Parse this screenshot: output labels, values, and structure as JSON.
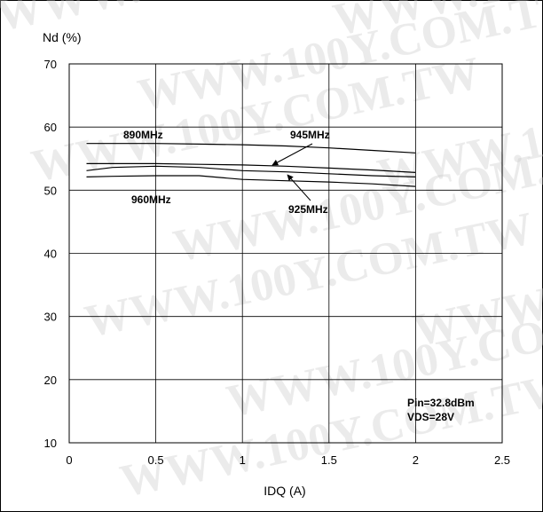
{
  "chart_data": {
    "type": "line",
    "title": "",
    "xlabel": "IDQ (A)",
    "ylabel": "Nd (%)",
    "xlim": [
      0,
      2.5
    ],
    "ylim": [
      10,
      70
    ],
    "xticks": [
      0,
      0.5,
      1,
      1.5,
      2,
      2.5
    ],
    "xtick_labels": [
      "0",
      "0.5",
      "1",
      "1.5",
      "2",
      "2.5"
    ],
    "yticks": [
      10,
      20,
      30,
      40,
      50,
      60,
      70
    ],
    "ytick_labels": [
      "10",
      "20",
      "30",
      "40",
      "50",
      "60",
      "70"
    ],
    "grid": true,
    "series": [
      {
        "name": "890MHz",
        "x": [
          0.1,
          0.25,
          0.5,
          0.75,
          1.0,
          1.25,
          1.5,
          1.75,
          2.0
        ],
        "y": [
          57.4,
          57.4,
          57.4,
          57.3,
          57.2,
          57.0,
          56.7,
          56.3,
          55.9
        ]
      },
      {
        "name": "945MHz",
        "x": [
          0.1,
          0.25,
          0.5,
          0.75,
          1.0,
          1.25,
          1.5,
          1.75,
          2.0
        ],
        "y": [
          54.2,
          54.2,
          54.2,
          54.1,
          54.0,
          53.8,
          53.5,
          53.2,
          52.8
        ]
      },
      {
        "name": "925MHz",
        "x": [
          0.1,
          0.25,
          0.5,
          0.75,
          1.0,
          1.25,
          1.5,
          1.75,
          2.0
        ],
        "y": [
          53.1,
          53.6,
          53.8,
          53.6,
          53.1,
          52.9,
          52.6,
          52.3,
          52.1
        ]
      },
      {
        "name": "960MHz",
        "x": [
          0.1,
          0.25,
          0.5,
          0.75,
          1.0,
          1.25,
          1.5,
          1.75,
          2.0
        ],
        "y": [
          52.1,
          52.2,
          52.3,
          52.3,
          51.7,
          51.5,
          51.3,
          51.0,
          50.6
        ]
      }
    ],
    "annotations": [
      "Pin=32.8dBm",
      "VDS=28V"
    ],
    "watermark": "WWW.100Y.COM.TW"
  },
  "colors": {
    "line": "#000000",
    "grid": "#000000",
    "background": "#ffffff"
  }
}
